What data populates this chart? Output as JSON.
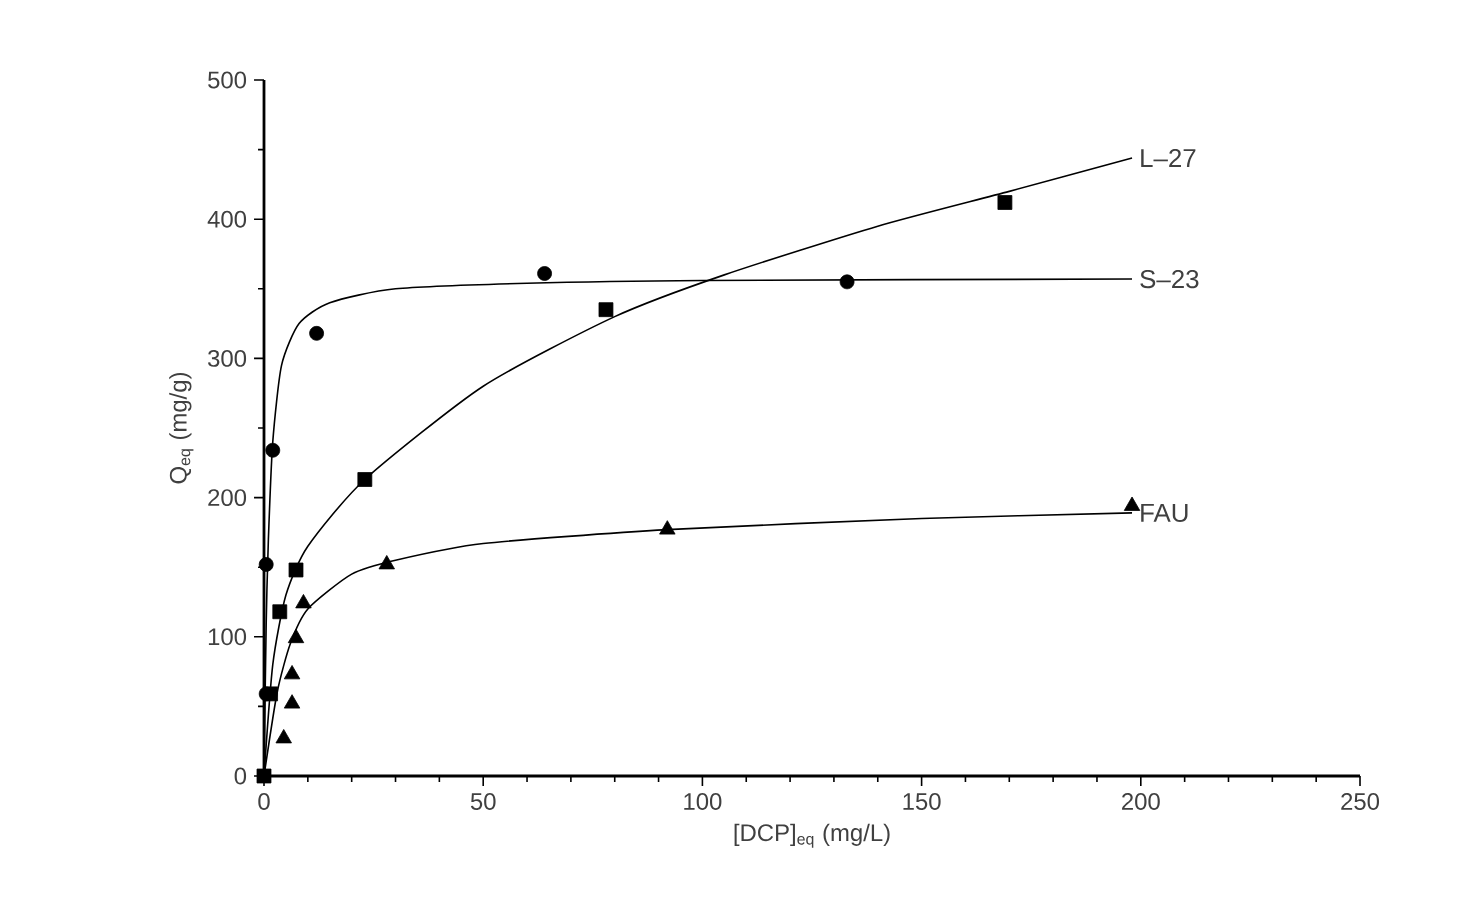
{
  "chart_data": {
    "type": "scatter",
    "xlabel": "[DCP]$_{eq}$ (mg/L)",
    "ylabel": "Q$_{eq}$ (mg/g)",
    "xlim": [
      0,
      250
    ],
    "ylim": [
      0,
      500
    ],
    "xticks": [
      0,
      50,
      100,
      150,
      200,
      250
    ],
    "yticks": [
      0,
      100,
      200,
      300,
      400,
      500
    ],
    "grid": false,
    "series": [
      {
        "marker": "circle",
        "color": "#000000",
        "x": [
          0.5,
          0.5,
          2,
          12,
          64,
          133
        ],
        "values": [
          59,
          152,
          234,
          318,
          361,
          355
        ]
      },
      {
        "marker": "square",
        "color": "#000000",
        "x": [
          0,
          1.5,
          3.6,
          7.3,
          23,
          78,
          169
        ],
        "values": [
          0,
          59,
          118,
          148,
          213,
          335,
          412
        ]
      },
      {
        "marker": "triangle",
        "color": "#000000",
        "x": [
          4.5,
          6.4,
          6.4,
          7.3,
          9,
          28,
          92,
          198
        ],
        "values": [
          27,
          52,
          73,
          99,
          124,
          152,
          177,
          194
        ]
      },
      {
        "type": "line",
        "name": "L–27",
        "marker": "none",
        "color": "#000000",
        "x": [
          0,
          2,
          5,
          10,
          23,
          50,
          80,
          105,
          140,
          170,
          198
        ],
        "values": [
          0,
          80,
          130,
          165,
          213,
          280,
          330,
          360,
          395,
          420,
          444
        ]
      },
      {
        "type": "line",
        "name": "S–23",
        "marker": "none",
        "color": "#000000",
        "x": [
          0,
          0.5,
          1,
          2,
          4,
          8,
          15,
          30,
          60,
          100,
          198
        ],
        "values": [
          0,
          110,
          170,
          240,
          295,
          325,
          340,
          350,
          354,
          356,
          357
        ]
      },
      {
        "type": "line",
        "name": "FAU",
        "marker": "none",
        "color": "#000000",
        "x": [
          0,
          3,
          6,
          10,
          20,
          30,
          50,
          92,
          150,
          198
        ],
        "values": [
          0,
          60,
          95,
          120,
          145,
          155,
          167,
          177,
          185,
          189
        ]
      }
    ]
  }
}
